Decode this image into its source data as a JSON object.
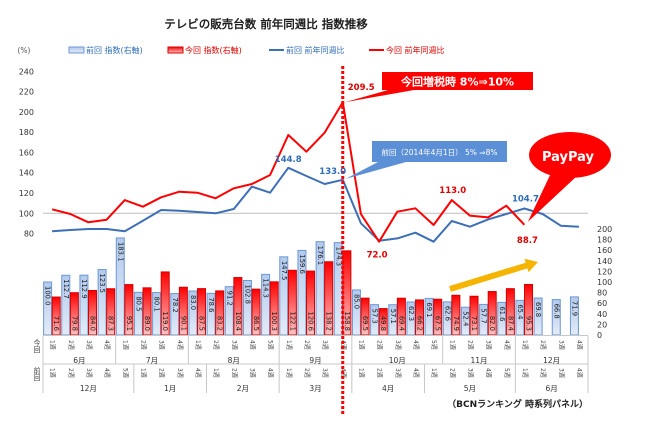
{
  "chart_data": {
    "type": "bar",
    "combo": true,
    "title": "テレビの販売台数 前年同週比 指数推移",
    "y_left": {
      "unit_label": "(%)",
      "range": [
        80,
        240
      ],
      "ticks": [
        240,
        220,
        200,
        180,
        160,
        140,
        120,
        100,
        80
      ],
      "reference_gridline": 100
    },
    "y_right": {
      "range": [
        0,
        200
      ],
      "ticks": [
        200,
        180,
        160,
        140,
        120,
        100,
        80,
        60,
        40,
        20,
        0
      ]
    },
    "grid": false,
    "legend": {
      "placement": "top"
    },
    "x_axis": {
      "rows": [
        {
          "label": "今回",
          "months": [
            {
              "label": "6月",
              "weeks": [
                "1週",
                "2週",
                "3週",
                "4週"
              ]
            },
            {
              "label": "7月",
              "weeks": [
                "1週",
                "2週",
                "3週",
                "4週"
              ]
            },
            {
              "label": "8月",
              "weeks": [
                "1週",
                "2週",
                "3週",
                "4週",
                "5週"
              ]
            },
            {
              "label": "9月",
              "weeks": [
                "1週",
                "2週",
                "3週",
                "4週"
              ]
            },
            {
              "label": "10月",
              "weeks": [
                "1週",
                "2週",
                "3週",
                "4週",
                "5週"
              ]
            },
            {
              "label": "11月",
              "weeks": [
                "1週",
                "2週",
                "3週",
                "4週"
              ]
            },
            {
              "label": "12月",
              "weeks": [
                "1週",
                "2週",
                "3週",
                "4週"
              ]
            }
          ]
        },
        {
          "label": "前回",
          "months": [
            {
              "label": "12月",
              "weeks": [
                "1週",
                "2週",
                "3週",
                "4週",
                "5週"
              ]
            },
            {
              "label": "1月",
              "weeks": [
                "1週",
                "2週",
                "3週",
                "4週"
              ]
            },
            {
              "label": "2月",
              "weeks": [
                "1週",
                "2週",
                "3週",
                "4週"
              ]
            },
            {
              "label": "3月",
              "weeks": [
                "1週",
                "2週",
                "3週",
                "4週"
              ]
            },
            {
              "label": "4月",
              "weeks": [
                "1週",
                "2週",
                "3週",
                "4週"
              ]
            },
            {
              "label": "5月",
              "weeks": [
                "1週",
                "2週",
                "3週",
                "4週",
                "5週"
              ]
            },
            {
              "label": "6月",
              "weeks": [
                "1週",
                "2週",
                "3週",
                "4週"
              ]
            }
          ]
        }
      ]
    },
    "series": [
      {
        "name": "前回 指数(右軸)",
        "mark": "bar",
        "axis": "right",
        "color": "#6b98d6",
        "fill_top": "#b3caec",
        "fill_bottom": "#e3ebf7",
        "text_color": "#2f6db8",
        "values": [
          100.0,
          112.7,
          112.9,
          123.5,
          183.1,
          80.5,
          80.1,
          78.2,
          83.0,
          78.6,
          91.2,
          102.8,
          114.3,
          147.5,
          159.6,
          176.1,
          174.3,
          85.0,
          57.3,
          57.1,
          62.3,
          69.1,
          62.6,
          52.4,
          57.7,
          61.6,
          65.4,
          69.8,
          66.8,
          71.9
        ]
      },
      {
        "name": "今回 指数(右軸)",
        "mark": "bar",
        "axis": "right",
        "color": "#d40000",
        "fill_top": "#ff0000",
        "fill_bottom": "#ffc4c4",
        "text_color": "#e00000",
        "values": [
          71.6,
          79.8,
          84.0,
          87.3,
          95.1,
          89.0,
          119.0,
          90.1,
          87.5,
          83.2,
          108.4,
          86.5,
          100.3,
          122.1,
          120.6,
          138.2,
          158.8,
          69.5,
          49.8,
          69.4,
          66.2,
          67.5,
          74.9,
          73.1,
          82.0,
          87.4,
          95.3,
          null,
          null,
          null
        ]
      },
      {
        "name": "前回 前年同週比",
        "mark": "line",
        "axis": "left",
        "color": "#3d6fb6",
        "text_color": "#2f6db8",
        "values": [
          82.3,
          83.5,
          84.5,
          84.5,
          82.3,
          92.7,
          103.3,
          102.6,
          101.3,
          100.0,
          104.2,
          126.3,
          120.3,
          144.8,
          136.8,
          128.9,
          133.0,
          90.1,
          73.0,
          75.3,
          80.9,
          72.0,
          92.4,
          86.8,
          94.0,
          99.3,
          104.7,
          99.3,
          87.8,
          86.8
        ]
      },
      {
        "name": "今回 前年同週比",
        "mark": "line",
        "axis": "left",
        "color": "#ff0000",
        "text_color": "#e00000",
        "values": [
          103.9,
          99.3,
          91.1,
          93.7,
          113.0,
          106.5,
          115.8,
          121.3,
          120.3,
          114.8,
          124.6,
          128.9,
          137.7,
          177.2,
          160.7,
          179.4,
          209.5,
          99.3,
          72.0,
          101.6,
          104.9,
          88.5,
          113.0,
          97.7,
          96.0,
          107.5,
          88.7,
          null,
          null,
          null
        ]
      }
    ],
    "point_labels": [
      {
        "series": 3,
        "index": 16,
        "text": "209.5"
      },
      {
        "series": 2,
        "index": 13,
        "text": "144.8"
      },
      {
        "series": 2,
        "index": 16,
        "text": "133.0"
      },
      {
        "series": 3,
        "index": 18,
        "text": "72.0"
      },
      {
        "series": 3,
        "index": 22,
        "text": "113.0"
      },
      {
        "series": 2,
        "index": 26,
        "text": "104.7"
      },
      {
        "series": 3,
        "index": 26,
        "text": "88.7"
      }
    ],
    "marker_line": {
      "index": 16,
      "style": "dotted",
      "color": "#ff0000"
    },
    "annotations": [
      {
        "id": "current-tax-hike",
        "text": "今回増税時  8%⇒10%",
        "shape": "box",
        "color": "#ff0000",
        "text_color": "#ffffff",
        "target": {
          "series": 3,
          "index": 16
        }
      },
      {
        "id": "previous-tax-hike",
        "text": "前回（2014年4月1日） 5% ⇒8%",
        "shape": "box",
        "color": "#5b8fd6",
        "text_color": "#ffffff",
        "target": {
          "series": 2,
          "index": 16
        }
      },
      {
        "id": "paypay",
        "text": "PayPay",
        "shape": "ellipse",
        "color": "#ff0000",
        "text_color": "#ffffff",
        "target": {
          "series": 3,
          "index": 26
        }
      },
      {
        "id": "trend-arrow",
        "shape": "arrow",
        "direction": "up-right",
        "color": "#f5b400"
      }
    ],
    "source": "（BCNランキング  時系列パネル）"
  }
}
